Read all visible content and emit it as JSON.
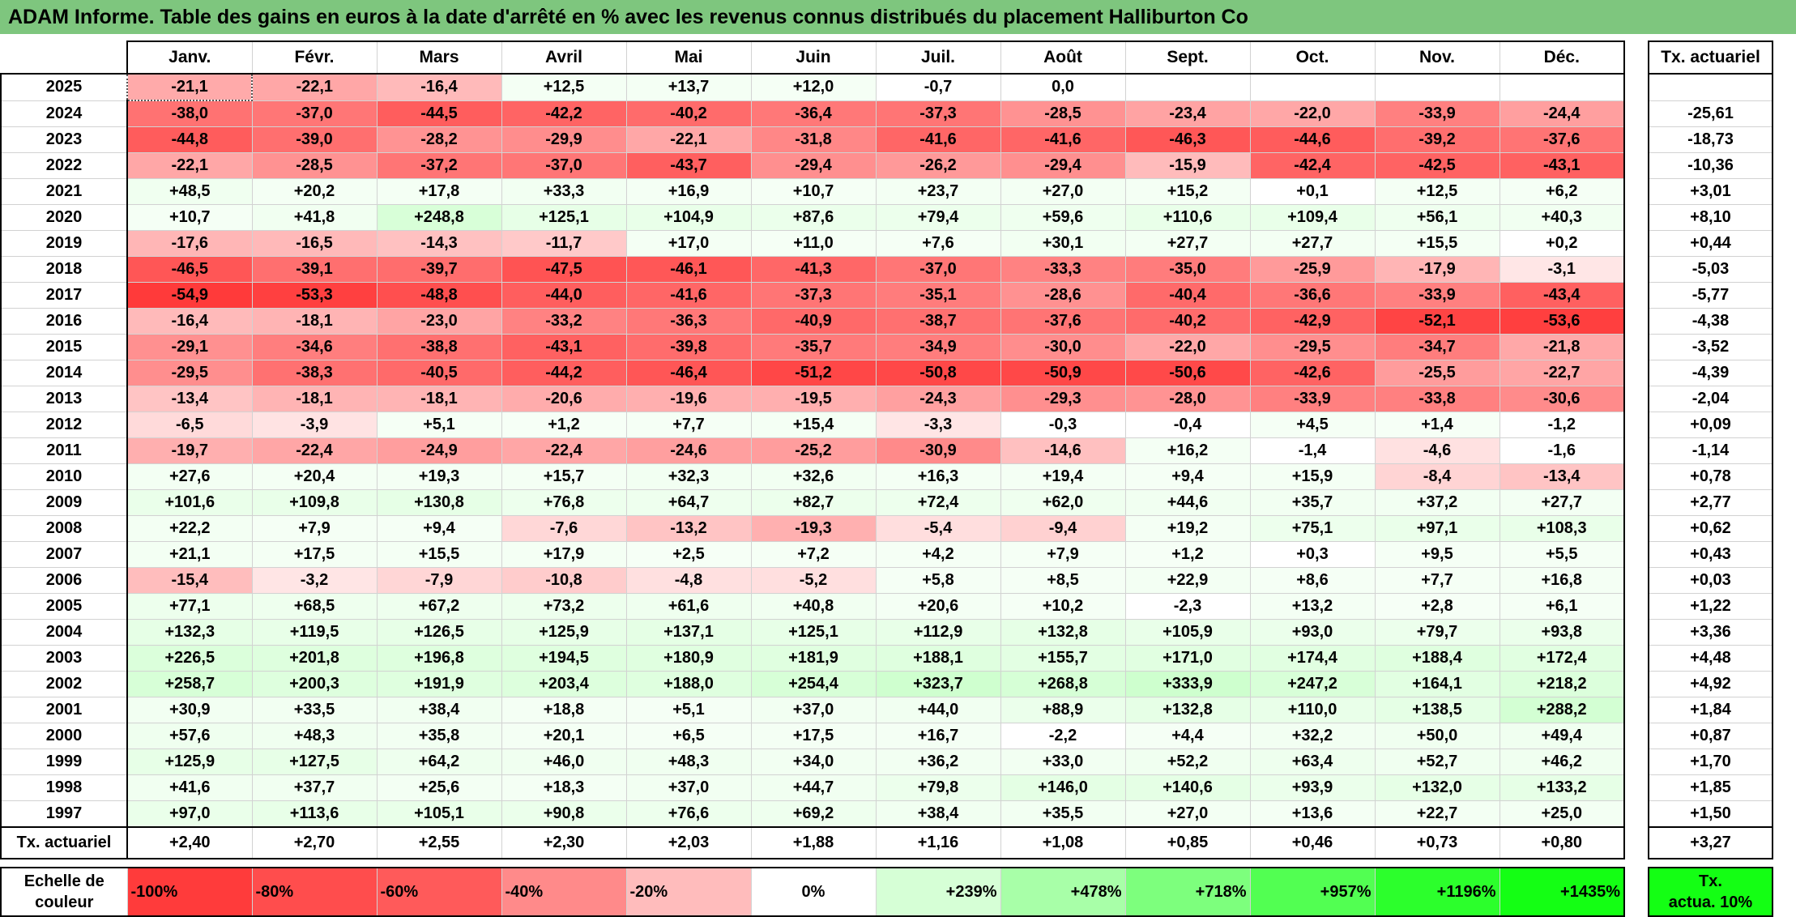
{
  "title": "ADAM Informe. Table des gains en euros à la date d'arrêté en % avec les revenus connus distribués du placement Halliburton Co",
  "months": [
    "Janv.",
    "Févr.",
    "Mars",
    "Avril",
    "Mai",
    "Juin",
    "Juil.",
    "Août",
    "Sept.",
    "Oct.",
    "Nov.",
    "Déc."
  ],
  "rate_header": "Tx. actuariel",
  "rows": [
    {
      "year": "2025",
      "values": [
        "-21,1",
        "-22,1",
        "-16,4",
        "+12,5",
        "+13,7",
        "+12,0",
        "-0,7",
        "0,0",
        "",
        "",
        "",
        ""
      ],
      "rate": ""
    },
    {
      "year": "2024",
      "values": [
        "-38,0",
        "-37,0",
        "-44,5",
        "-42,2",
        "-40,2",
        "-36,4",
        "-37,3",
        "-28,5",
        "-23,4",
        "-22,0",
        "-33,9",
        "-24,4"
      ],
      "rate": "-25,61"
    },
    {
      "year": "2023",
      "values": [
        "-44,8",
        "-39,0",
        "-28,2",
        "-29,9",
        "-22,1",
        "-31,8",
        "-41,6",
        "-41,6",
        "-46,3",
        "-44,6",
        "-39,2",
        "-37,6"
      ],
      "rate": "-18,73"
    },
    {
      "year": "2022",
      "values": [
        "-22,1",
        "-28,5",
        "-37,2",
        "-37,0",
        "-43,7",
        "-29,4",
        "-26,2",
        "-29,4",
        "-15,9",
        "-42,4",
        "-42,5",
        "-43,1"
      ],
      "rate": "-10,36"
    },
    {
      "year": "2021",
      "values": [
        "+48,5",
        "+20,2",
        "+17,8",
        "+33,3",
        "+16,9",
        "+10,7",
        "+23,7",
        "+27,0",
        "+15,2",
        "+0,1",
        "+12,5",
        "+6,2"
      ],
      "rate": "+3,01"
    },
    {
      "year": "2020",
      "values": [
        "+10,7",
        "+41,8",
        "+248,8",
        "+125,1",
        "+104,9",
        "+87,6",
        "+79,4",
        "+59,6",
        "+110,6",
        "+109,4",
        "+56,1",
        "+40,3"
      ],
      "rate": "+8,10"
    },
    {
      "year": "2019",
      "values": [
        "-17,6",
        "-16,5",
        "-14,3",
        "-11,7",
        "+17,0",
        "+11,0",
        "+7,6",
        "+30,1",
        "+27,7",
        "+27,7",
        "+15,5",
        "+0,2"
      ],
      "rate": "+0,44"
    },
    {
      "year": "2018",
      "values": [
        "-46,5",
        "-39,1",
        "-39,7",
        "-47,5",
        "-46,1",
        "-41,3",
        "-37,0",
        "-33,3",
        "-35,0",
        "-25,9",
        "-17,9",
        "-3,1"
      ],
      "rate": "-5,03"
    },
    {
      "year": "2017",
      "values": [
        "-54,9",
        "-53,3",
        "-48,8",
        "-44,0",
        "-41,6",
        "-37,3",
        "-35,1",
        "-28,6",
        "-40,4",
        "-36,6",
        "-33,9",
        "-43,4"
      ],
      "rate": "-5,77"
    },
    {
      "year": "2016",
      "values": [
        "-16,4",
        "-18,1",
        "-23,0",
        "-33,2",
        "-36,3",
        "-40,9",
        "-38,7",
        "-37,6",
        "-40,2",
        "-42,9",
        "-52,1",
        "-53,6"
      ],
      "rate": "-4,38"
    },
    {
      "year": "2015",
      "values": [
        "-29,1",
        "-34,6",
        "-38,8",
        "-43,1",
        "-39,8",
        "-35,7",
        "-34,9",
        "-30,0",
        "-22,0",
        "-29,5",
        "-34,7",
        "-21,8"
      ],
      "rate": "-3,52"
    },
    {
      "year": "2014",
      "values": [
        "-29,5",
        "-38,3",
        "-40,5",
        "-44,2",
        "-46,4",
        "-51,2",
        "-50,8",
        "-50,9",
        "-50,6",
        "-42,6",
        "-25,5",
        "-22,7"
      ],
      "rate": "-4,39"
    },
    {
      "year": "2013",
      "values": [
        "-13,4",
        "-18,1",
        "-18,1",
        "-20,6",
        "-19,6",
        "-19,5",
        "-24,3",
        "-29,3",
        "-28,0",
        "-33,9",
        "-33,8",
        "-30,6"
      ],
      "rate": "-2,04"
    },
    {
      "year": "2012",
      "values": [
        "-6,5",
        "-3,9",
        "+5,1",
        "+1,2",
        "+7,7",
        "+15,4",
        "-3,3",
        "-0,3",
        "-0,4",
        "+4,5",
        "+1,4",
        "-1,2"
      ],
      "rate": "+0,09"
    },
    {
      "year": "2011",
      "values": [
        "-19,7",
        "-22,4",
        "-24,9",
        "-22,4",
        "-24,6",
        "-25,2",
        "-30,9",
        "-14,6",
        "+16,2",
        "-1,4",
        "-4,6",
        "-1,6"
      ],
      "rate": "-1,14"
    },
    {
      "year": "2010",
      "values": [
        "+27,6",
        "+20,4",
        "+19,3",
        "+15,7",
        "+32,3",
        "+32,6",
        "+16,3",
        "+19,4",
        "+9,4",
        "+15,9",
        "-8,4",
        "-13,4"
      ],
      "rate": "+0,78"
    },
    {
      "year": "2009",
      "values": [
        "+101,6",
        "+109,8",
        "+130,8",
        "+76,8",
        "+64,7",
        "+82,7",
        "+72,4",
        "+62,0",
        "+44,6",
        "+35,7",
        "+37,2",
        "+27,7"
      ],
      "rate": "+2,77"
    },
    {
      "year": "2008",
      "values": [
        "+22,2",
        "+7,9",
        "+9,4",
        "-7,6",
        "-13,2",
        "-19,3",
        "-5,4",
        "-9,4",
        "+19,2",
        "+75,1",
        "+97,1",
        "+108,3"
      ],
      "rate": "+0,62"
    },
    {
      "year": "2007",
      "values": [
        "+21,1",
        "+17,5",
        "+15,5",
        "+17,9",
        "+2,5",
        "+7,2",
        "+4,2",
        "+7,9",
        "+1,2",
        "+0,3",
        "+9,5",
        "+5,5"
      ],
      "rate": "+0,43"
    },
    {
      "year": "2006",
      "values": [
        "-15,4",
        "-3,2",
        "-7,9",
        "-10,8",
        "-4,8",
        "-5,2",
        "+5,8",
        "+8,5",
        "+22,9",
        "+8,6",
        "+7,7",
        "+16,8"
      ],
      "rate": "+0,03"
    },
    {
      "year": "2005",
      "values": [
        "+77,1",
        "+68,5",
        "+67,2",
        "+73,2",
        "+61,6",
        "+40,8",
        "+20,6",
        "+10,2",
        "-2,3",
        "+13,2",
        "+2,8",
        "+6,1"
      ],
      "rate": "+1,22"
    },
    {
      "year": "2004",
      "values": [
        "+132,3",
        "+119,5",
        "+126,5",
        "+125,9",
        "+137,1",
        "+125,1",
        "+112,9",
        "+132,8",
        "+105,9",
        "+93,0",
        "+79,7",
        "+93,8"
      ],
      "rate": "+3,36"
    },
    {
      "year": "2003",
      "values": [
        "+226,5",
        "+201,8",
        "+196,8",
        "+194,5",
        "+180,9",
        "+181,9",
        "+188,1",
        "+155,7",
        "+171,0",
        "+174,4",
        "+188,4",
        "+172,4"
      ],
      "rate": "+4,48"
    },
    {
      "year": "2002",
      "values": [
        "+258,7",
        "+200,3",
        "+191,9",
        "+203,4",
        "+188,0",
        "+254,4",
        "+323,7",
        "+268,8",
        "+333,9",
        "+247,2",
        "+164,1",
        "+218,2"
      ],
      "rate": "+4,92"
    },
    {
      "year": "2001",
      "values": [
        "+30,9",
        "+33,5",
        "+38,4",
        "+18,8",
        "+5,1",
        "+37,0",
        "+44,0",
        "+88,9",
        "+132,8",
        "+110,0",
        "+138,5",
        "+288,2"
      ],
      "rate": "+1,84"
    },
    {
      "year": "2000",
      "values": [
        "+57,6",
        "+48,3",
        "+35,8",
        "+20,1",
        "+6,5",
        "+17,5",
        "+16,7",
        "-2,2",
        "+4,4",
        "+32,2",
        "+50,0",
        "+49,4"
      ],
      "rate": "+0,87"
    },
    {
      "year": "1999",
      "values": [
        "+125,9",
        "+127,5",
        "+64,2",
        "+46,0",
        "+48,3",
        "+34,0",
        "+36,2",
        "+33,0",
        "+52,2",
        "+63,4",
        "+52,7",
        "+46,2"
      ],
      "rate": "+1,70"
    },
    {
      "year": "1998",
      "values": [
        "+41,6",
        "+37,7",
        "+25,6",
        "+18,3",
        "+37,0",
        "+44,7",
        "+79,8",
        "+146,0",
        "+140,6",
        "+93,9",
        "+132,0",
        "+133,2"
      ],
      "rate": "+1,85"
    },
    {
      "year": "1997",
      "values": [
        "+97,0",
        "+113,6",
        "+105,1",
        "+90,8",
        "+76,6",
        "+69,2",
        "+38,4",
        "+35,5",
        "+27,0",
        "+13,6",
        "+22,7",
        "+25,0"
      ],
      "rate": "+1,50"
    }
  ],
  "total_row": {
    "label": "Tx. actuariel",
    "values": [
      "+2,40",
      "+2,70",
      "+2,55",
      "+2,30",
      "+2,03",
      "+1,88",
      "+1,16",
      "+1,08",
      "+0,85",
      "+0,46",
      "+0,73",
      "+0,80"
    ],
    "rate": "+3,27"
  },
  "scale": {
    "label_line1": "Echelle de",
    "label_line2": "couleur",
    "steps": [
      {
        "label": "-100%",
        "color": "#ff3b3b",
        "align": "left"
      },
      {
        "label": "-80%",
        "color": "#ff4d4d",
        "align": "left"
      },
      {
        "label": "-60%",
        "color": "#ff5a5a",
        "align": "left"
      },
      {
        "label": "-40%",
        "color": "#ff8a8a",
        "align": "left"
      },
      {
        "label": "-20%",
        "color": "#ffbcbc",
        "align": "left"
      },
      {
        "label": "0%",
        "color": "#ffffff",
        "align": "center"
      },
      {
        "label": "+239%",
        "color": "#d6ffd6",
        "align": "right"
      },
      {
        "label": "+478%",
        "color": "#a8ffa8",
        "align": "right"
      },
      {
        "label": "+718%",
        "color": "#7dff7d",
        "align": "right"
      },
      {
        "label": "+957%",
        "color": "#52ff52",
        "align": "right"
      },
      {
        "label": "+1196%",
        "color": "#2cff2c",
        "align": "right"
      },
      {
        "label": "+1435%",
        "color": "#14ff14",
        "align": "right"
      }
    ],
    "rate_label_line1": "Tx.",
    "rate_label_line2": "actua. 10%",
    "rate_color": "#14ff14"
  },
  "colors": {
    "title_bg": "#7ec67e",
    "neg_max": "#ff3b3b",
    "pos_light": "#f4fff4"
  }
}
